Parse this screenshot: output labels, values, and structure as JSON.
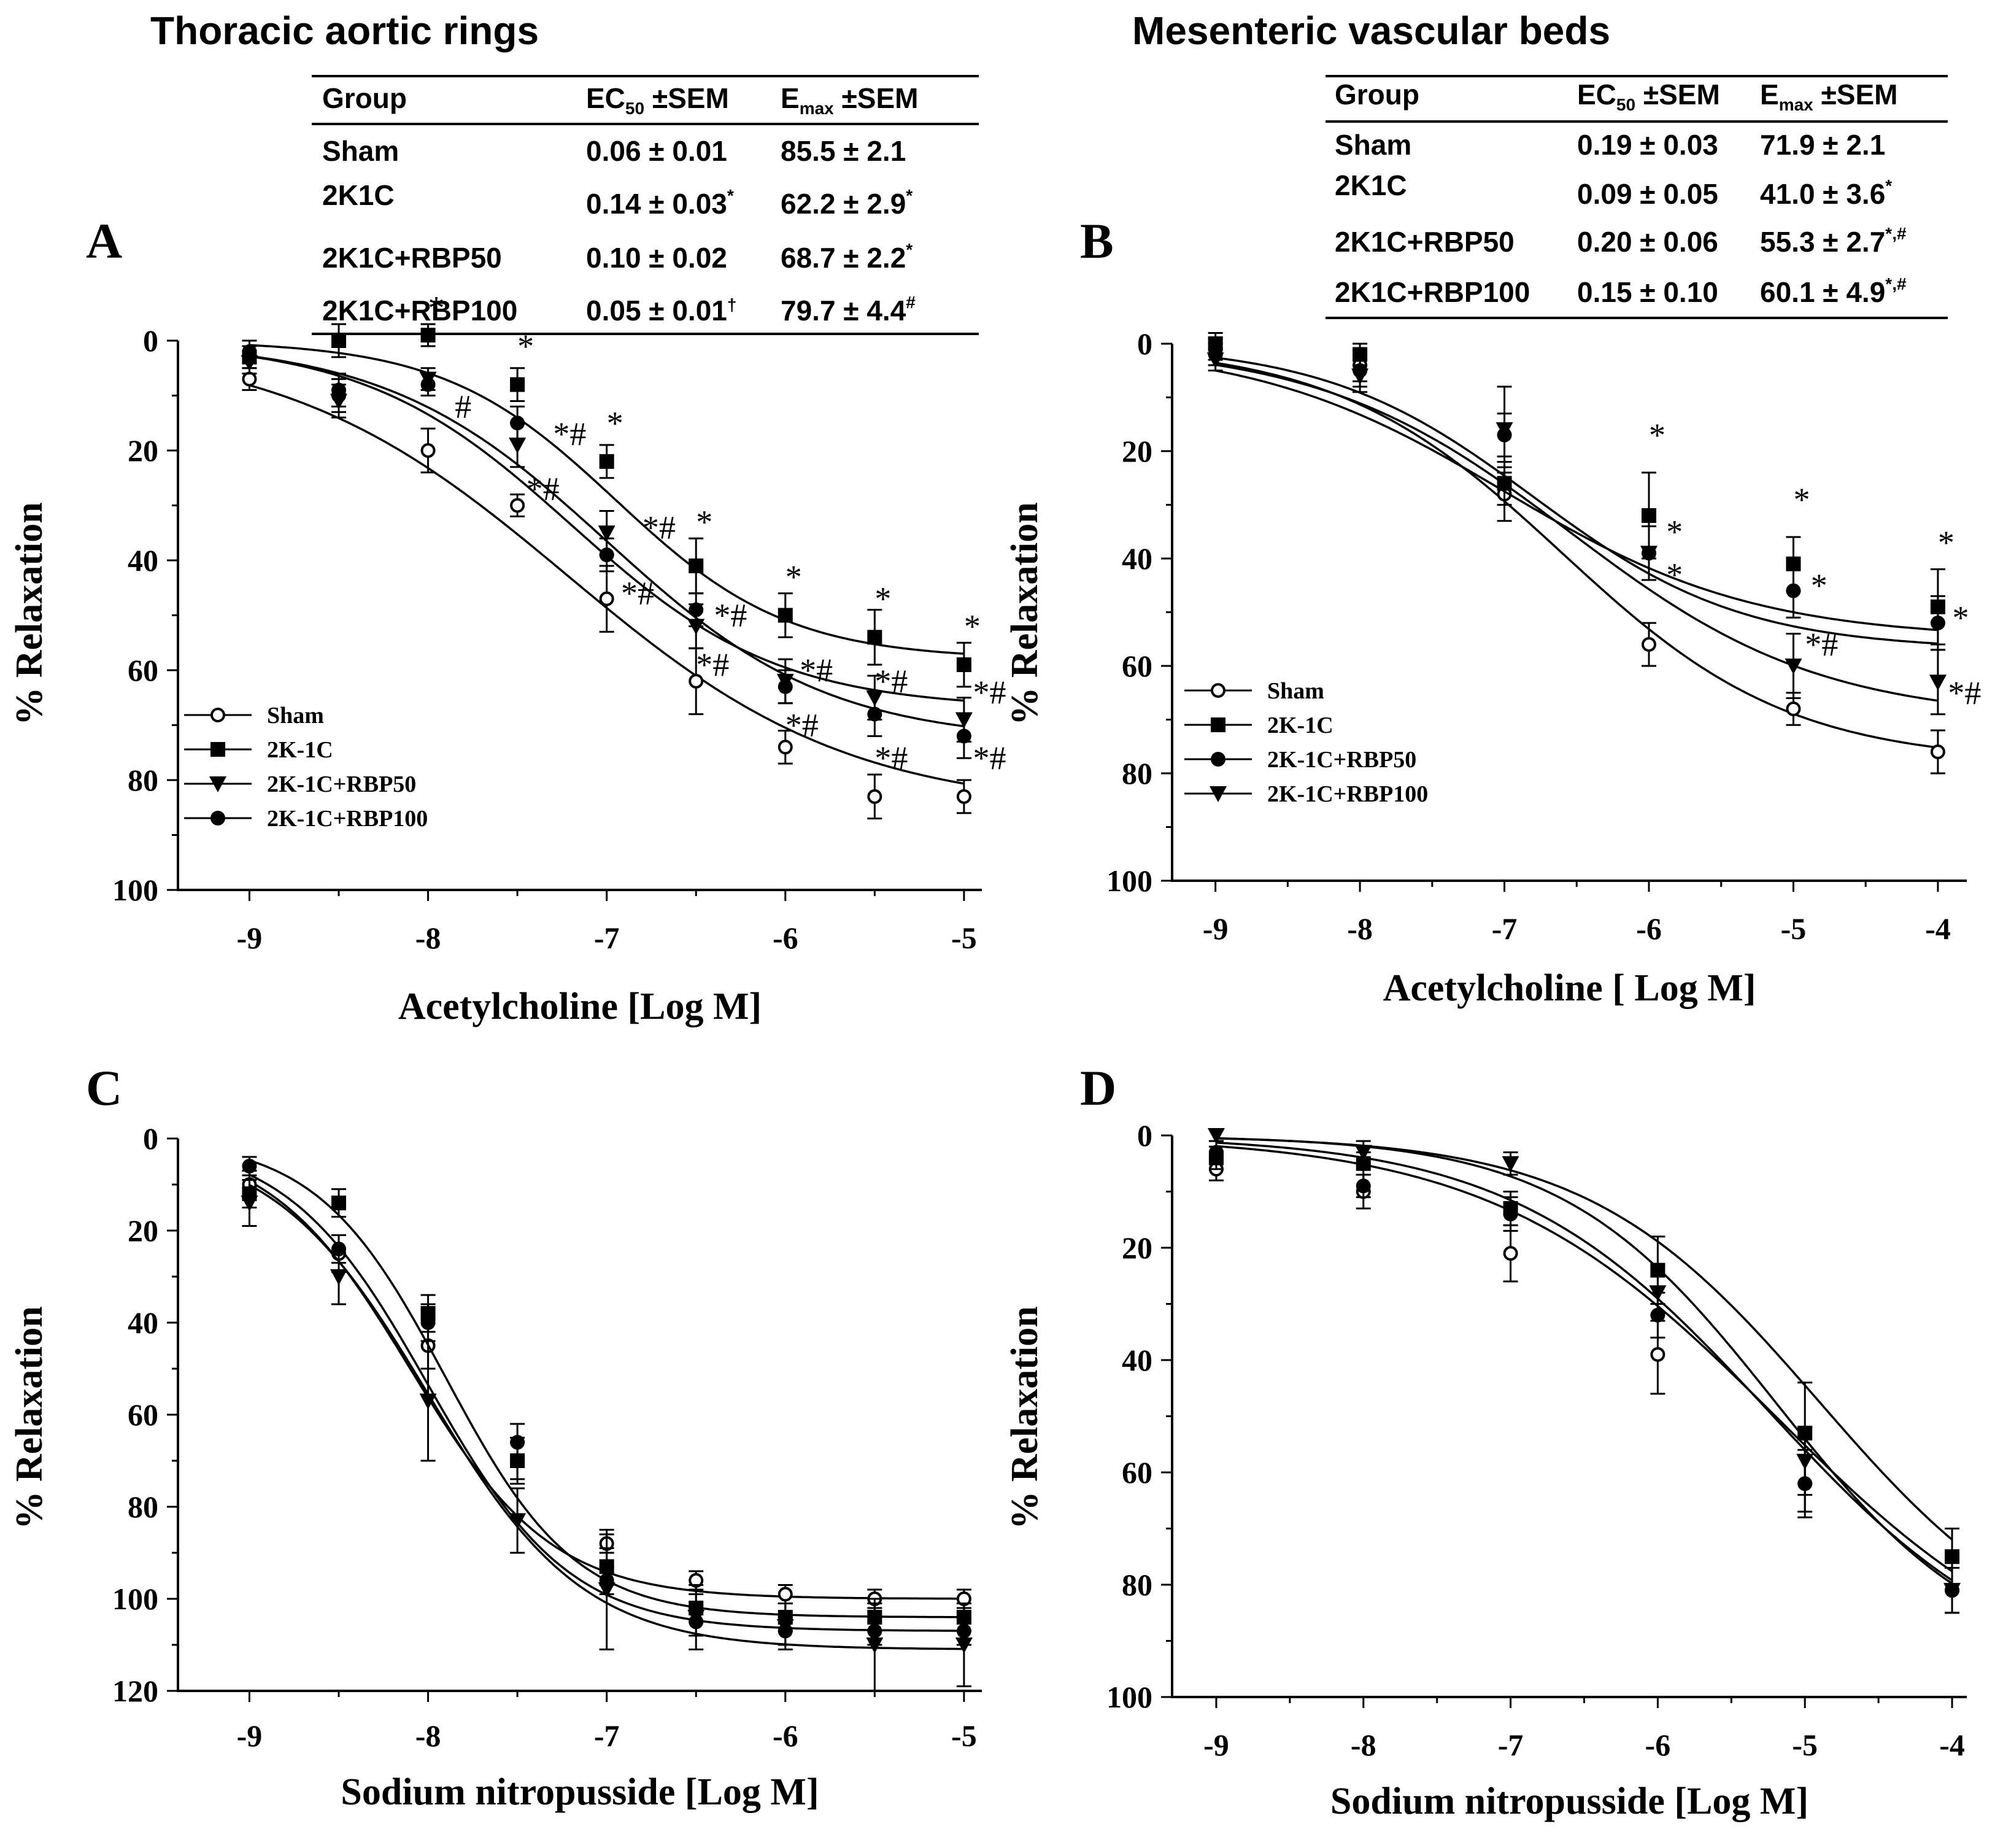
{
  "titles": {
    "left": "Thoracic aortic rings",
    "right": "Mesenteric vascular beds"
  },
  "tables": [
    {
      "header": [
        "Group",
        "EC",
        "50",
        " ±SEM",
        "E",
        "max",
        " ±SEM"
      ],
      "rows": [
        [
          "Sham",
          "0.06 ± 0.01",
          "",
          "85.5 ± 2.1",
          ""
        ],
        [
          "2K1C",
          "0.14 ± 0.03",
          "*",
          "62.2 ± 2.9",
          "*"
        ],
        [
          "2K1C+RBP50",
          "0.10 ± 0.02",
          "",
          "68.7 ± 2.2",
          "*"
        ],
        [
          "2K1C+RBP100",
          "0.05 ± 0.01",
          "†",
          "79.7 ± 4.4",
          "#"
        ]
      ]
    },
    {
      "header": [
        "Group",
        "EC",
        "50",
        " ±SEM",
        "E",
        "max",
        " ±SEM"
      ],
      "rows": [
        [
          "Sham",
          "0.19 ± 0.03",
          "",
          "71.9 ± 2.1",
          ""
        ],
        [
          "2K1C",
          "0.09 ± 0.05",
          "",
          "41.0 ± 3.6",
          "*"
        ],
        [
          "2K1C+RBP50",
          "0.20 ± 0.06",
          "",
          "55.3 ± 2.7",
          "*,#"
        ],
        [
          "2K1C+RBP100",
          "0.15 ± 0.10",
          "",
          "60.1 ± 4.9",
          "*,#"
        ]
      ]
    }
  ],
  "chart_data": [
    {
      "panel": "A",
      "type": "line",
      "xlabel": "Acetylcholine [Log M]",
      "ylabel": "% Relaxation",
      "xlim": [
        -9.4,
        -4.9
      ],
      "ylim": [
        0,
        100
      ],
      "y_inverted": true,
      "xticks": [
        -9,
        -8,
        -7,
        -6,
        -5
      ],
      "yticks": [
        0,
        20,
        40,
        60,
        80,
        100
      ],
      "legend": [
        "Sham",
        "2K-1C",
        "2K-1C+RBP50",
        "2K-1C+RBP100"
      ],
      "series": [
        {
          "name": "Sham",
          "marker": "circle-open",
          "x": [
            -9,
            -8.5,
            -8,
            -7.5,
            -7,
            -6.5,
            -6,
            -5.5,
            -5
          ],
          "y": [
            7,
            10,
            20,
            30,
            47,
            62,
            74,
            83,
            83
          ],
          "err": [
            2,
            3,
            4,
            2,
            6,
            6,
            3,
            4,
            3
          ],
          "fit": {
            "bottom": 0,
            "top": 85.5,
            "logec50": -7.22,
            "hill": 0.55
          }
        },
        {
          "name": "2K-1C",
          "marker": "square",
          "x": [
            -9,
            -8.5,
            -8,
            -7.5,
            -7,
            -6.5,
            -6,
            -5.5,
            -5
          ],
          "y": [
            3,
            0,
            -1,
            8,
            22,
            41,
            50,
            54,
            59
          ],
          "err": [
            2,
            3,
            2,
            3,
            3,
            5,
            4,
            5,
            4
          ],
          "fit": {
            "bottom": 0,
            "top": 58,
            "logec50": -6.95,
            "hill": 0.9
          }
        },
        {
          "name": "2K-1C+RBP50",
          "marker": "triangle-down",
          "x": [
            -9,
            -8.5,
            -8,
            -7.5,
            -7,
            -6.5,
            -6,
            -5.5,
            -5
          ],
          "y": [
            4,
            11,
            7,
            19,
            35,
            52,
            62,
            65,
            69
          ],
          "err": [
            2,
            3,
            2,
            4,
            4,
            4,
            4,
            4,
            4
          ],
          "fit": {
            "bottom": 0,
            "top": 67,
            "logec50": -7.2,
            "hill": 0.75
          }
        },
        {
          "name": "2K-1C+RBP100",
          "marker": "circle",
          "x": [
            -9,
            -8.5,
            -8,
            -7.5,
            -7,
            -6.5,
            -6,
            -5.5,
            -5
          ],
          "y": [
            2,
            9,
            8,
            15,
            39,
            49,
            63,
            68,
            72
          ],
          "err": [
            2,
            3,
            2,
            3,
            3,
            3,
            3,
            4,
            4
          ],
          "fit": {
            "bottom": 0,
            "top": 73,
            "logec50": -7.0,
            "hill": 0.7
          }
        }
      ],
      "annotations": [
        {
          "text": "*",
          "x": -8.0,
          "y": -6
        },
        {
          "text": "*",
          "x": -7.5,
          "y": 1
        },
        {
          "text": "*",
          "x": -7.0,
          "y": 15
        },
        {
          "text": "*",
          "x": -6.5,
          "y": 33
        },
        {
          "text": "*",
          "x": -6.0,
          "y": 43
        },
        {
          "text": "*",
          "x": -5.5,
          "y": 47
        },
        {
          "text": "*",
          "x": -5.0,
          "y": 52
        },
        {
          "text": "#",
          "x": -7.85,
          "y": 12
        },
        {
          "text": "*#",
          "x": -7.3,
          "y": 17
        },
        {
          "text": "*#",
          "x": -7.45,
          "y": 27
        },
        {
          "text": "*#",
          "x": -6.8,
          "y": 34
        },
        {
          "text": "*#",
          "x": -6.92,
          "y": 46
        },
        {
          "text": "*#",
          "x": -6.4,
          "y": 50
        },
        {
          "text": "*#",
          "x": -6.5,
          "y": 59
        },
        {
          "text": "*#",
          "x": -5.92,
          "y": 60
        },
        {
          "text": "*#",
          "x": -6.0,
          "y": 70
        },
        {
          "text": "*#",
          "x": -5.5,
          "y": 62
        },
        {
          "text": "*#",
          "x": -5.5,
          "y": 76
        },
        {
          "text": "*#",
          "x": -4.95,
          "y": 64
        },
        {
          "text": "*#",
          "x": -4.95,
          "y": 76
        }
      ]
    },
    {
      "panel": "B",
      "type": "line",
      "xlabel": "Acetylcholine [ Log M]",
      "ylabel": "% Relaxation",
      "xlim": [
        -9.3,
        -3.8
      ],
      "ylim": [
        0,
        100
      ],
      "y_inverted": true,
      "xticks": [
        -9,
        -8,
        -7,
        -6,
        -5,
        -4
      ],
      "yticks": [
        0,
        20,
        40,
        60,
        80,
        100
      ],
      "legend": [
        "Sham",
        "2K-1C",
        "2K-1C+RBP50",
        "2K-1C+RBP100"
      ],
      "series": [
        {
          "name": "Sham",
          "marker": "circle-open",
          "x": [
            -9,
            -8,
            -7,
            -6,
            -5,
            -4
          ],
          "y": [
            1,
            4,
            28,
            56,
            68,
            76
          ],
          "err": [
            2,
            3,
            5,
            4,
            3,
            4
          ],
          "fit": {
            "bottom": 0,
            "top": 78,
            "logec50": -6.6,
            "hill": 0.55
          }
        },
        {
          "name": "2K-1C",
          "marker": "square",
          "x": [
            -9,
            -8,
            -7,
            -6,
            -5,
            -4
          ],
          "y": [
            0,
            2,
            26,
            32,
            41,
            49
          ],
          "err": [
            2,
            2,
            4,
            8,
            5,
            7
          ],
          "fit": {
            "bottom": 0,
            "top": 55,
            "logec50": -7.0,
            "hill": 0.5
          }
        },
        {
          "name": "2K-1C+RBP50",
          "marker": "circle",
          "x": [
            -9,
            -8,
            -7,
            -6,
            -5,
            -4
          ],
          "y": [
            2,
            5,
            17,
            39,
            46,
            52
          ],
          "err": [
            2,
            3,
            4,
            5,
            5,
            5
          ],
          "fit": {
            "bottom": 0,
            "top": 57,
            "logec50": -6.8,
            "hill": 0.6
          }
        },
        {
          "name": "2K-1C+RBP100",
          "marker": "triangle-down",
          "x": [
            -9,
            -8,
            -7,
            -6,
            -5,
            -4
          ],
          "y": [
            3,
            6,
            16,
            39,
            60,
            63
          ],
          "err": [
            2,
            3,
            8,
            5,
            6,
            6
          ],
          "fit": {
            "bottom": 0,
            "top": 70,
            "logec50": -6.55,
            "hill": 0.5
          }
        }
      ],
      "annotations": [
        {
          "text": "*",
          "x": -6.0,
          "y": 17
        },
        {
          "text": "*",
          "x": -5.0,
          "y": 29
        },
        {
          "text": "*",
          "x": -4.0,
          "y": 37
        },
        {
          "text": "*",
          "x": -5.88,
          "y": 35
        },
        {
          "text": "*",
          "x": -5.88,
          "y": 43
        },
        {
          "text": "*",
          "x": -4.88,
          "y": 45
        },
        {
          "text": "*#",
          "x": -4.92,
          "y": 56
        },
        {
          "text": "*",
          "x": -3.9,
          "y": 51
        },
        {
          "text": "*#",
          "x": -3.93,
          "y": 65
        }
      ]
    },
    {
      "panel": "C",
      "type": "line",
      "xlabel": "Sodium nitropusside [Log M]",
      "ylabel": "% Relaxation",
      "xlim": [
        -9.4,
        -4.9
      ],
      "ylim": [
        0,
        120
      ],
      "y_inverted": true,
      "xticks": [
        -9,
        -8,
        -7,
        -6,
        -5
      ],
      "yticks": [
        0,
        20,
        40,
        60,
        80,
        100,
        120
      ],
      "series": [
        {
          "name": "Sham",
          "marker": "circle-open",
          "x": [
            -9,
            -8.5,
            -8,
            -7.5,
            -7,
            -6.5,
            -6,
            -5.5,
            -5
          ],
          "y": [
            10,
            25,
            45,
            70,
            88,
            96,
            99,
            100,
            100
          ],
          "err": [
            3,
            4,
            5,
            4,
            2,
            2,
            2,
            2,
            2
          ],
          "fit": {
            "bottom": 0,
            "top": 100,
            "logec50": -8.1,
            "hill": 1.1
          }
        },
        {
          "name": "2K-1C",
          "marker": "square",
          "x": [
            -9,
            -8.5,
            -8,
            -7.5,
            -7,
            -6.5,
            -6,
            -5.5,
            -5
          ],
          "y": [
            12,
            14,
            38,
            70,
            93,
            102,
            104,
            104,
            104
          ],
          "err": [
            3,
            3,
            4,
            5,
            4,
            3,
            3,
            3,
            3
          ],
          "fit": {
            "bottom": 0,
            "top": 104,
            "logec50": -7.9,
            "hill": 1.2
          }
        },
        {
          "name": "2K-1C+RBP50",
          "marker": "triangle-down",
          "x": [
            -9,
            -8.5,
            -8,
            -7.5,
            -7,
            -6.5,
            -6,
            -5.5,
            -5
          ],
          "y": [
            14,
            30,
            57,
            83,
            98,
            104,
            106,
            110,
            110
          ],
          "err": [
            5,
            6,
            13,
            7,
            13,
            7,
            5,
            10,
            9
          ],
          "fit": {
            "bottom": 0,
            "top": 111,
            "logec50": -8.0,
            "hill": 1.0
          }
        },
        {
          "name": "2K-1C+RBP100",
          "marker": "circle",
          "x": [
            -9,
            -8.5,
            -8,
            -7.5,
            -7,
            -6.5,
            -6,
            -5.5,
            -5
          ],
          "y": [
            6,
            24,
            40,
            66,
            96,
            105,
            107,
            107,
            107
          ],
          "err": [
            2,
            3,
            4,
            4,
            3,
            3,
            3,
            3,
            3
          ],
          "fit": {
            "bottom": 0,
            "top": 107,
            "logec50": -8.0,
            "hill": 1.1
          }
        }
      ],
      "annotations": []
    },
    {
      "panel": "D",
      "type": "line",
      "xlabel": "Sodium nitropusside [Log M]",
      "ylabel": "% Relaxation",
      "xlim": [
        -9.3,
        -3.9
      ],
      "ylim": [
        0,
        100
      ],
      "y_inverted": true,
      "xticks": [
        -9,
        -8,
        -7,
        -6,
        -5,
        -4
      ],
      "yticks": [
        0,
        20,
        40,
        60,
        80,
        100
      ],
      "series": [
        {
          "name": "Sham",
          "marker": "circle-open",
          "x": [
            -9,
            -8,
            -7,
            -6,
            -5,
            -4
          ],
          "y": [
            6,
            10,
            21,
            39,
            62,
            81
          ],
          "err": [
            2,
            3,
            5,
            7,
            6,
            4
          ],
          "fit": {
            "bottom": 0,
            "top": 100,
            "logec50": -5.2,
            "hill": 0.45
          }
        },
        {
          "name": "2K-1C",
          "marker": "square",
          "x": [
            -9,
            -8,
            -7,
            -6,
            -5,
            -4
          ],
          "y": [
            4,
            5,
            13,
            24,
            53,
            75
          ],
          "err": [
            2,
            2,
            3,
            6,
            9,
            5
          ],
          "fit": {
            "bottom": 0,
            "top": 95,
            "logec50": -4.9,
            "hill": 0.55
          }
        },
        {
          "name": "2K-1C+RBP50",
          "marker": "triangle-down",
          "x": [
            -9,
            -8,
            -7,
            -6,
            -5,
            -4
          ],
          "y": [
            0,
            3,
            5,
            28,
            58,
            81
          ],
          "err": [
            1,
            2,
            2,
            5,
            6,
            4
          ],
          "fit": {
            "bottom": 0,
            "top": 95,
            "logec50": -5.2,
            "hill": 0.6
          }
        },
        {
          "name": "2K-1C+RBP100",
          "marker": "circle",
          "x": [
            -9,
            -8,
            -7,
            -6,
            -5,
            -4
          ],
          "y": [
            3,
            9,
            14,
            32,
            62,
            81
          ],
          "err": [
            2,
            2,
            3,
            4,
            5,
            4
          ],
          "fit": {
            "bottom": 0,
            "top": 98,
            "logec50": -5.25,
            "hill": 0.5
          }
        }
      ],
      "annotations": []
    }
  ]
}
